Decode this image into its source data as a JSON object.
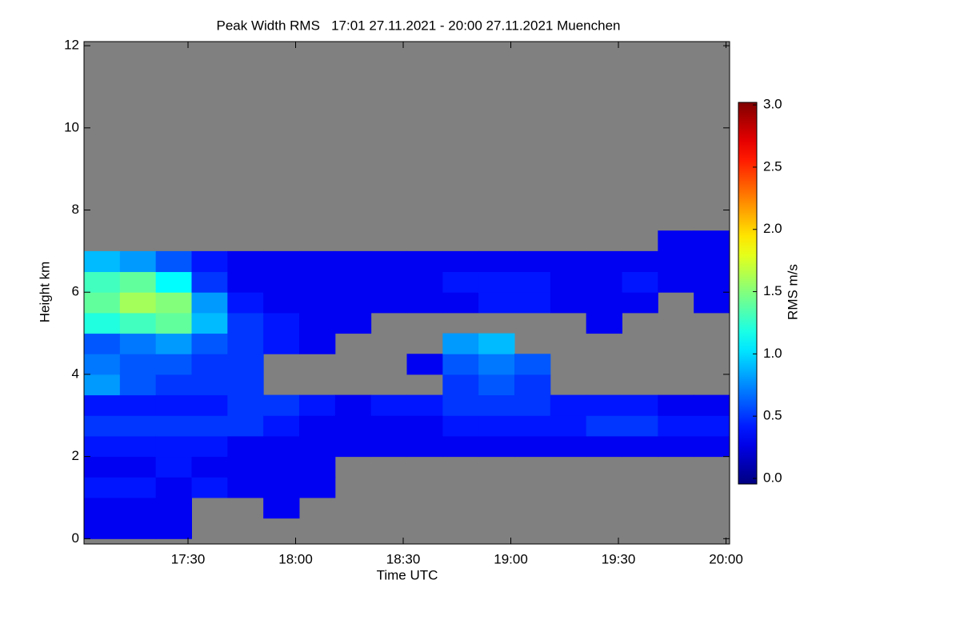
{
  "chart_data": {
    "type": "heatmap",
    "title": "Peak Width RMS   17:01 27.11.2021 - 20:00 27.11.2021 Muenchen",
    "x_label": "Time UTC",
    "y_label": "Height km",
    "colorbar_label": "RMS m/s",
    "colormap": "jet",
    "background": "#808080",
    "xlim": [
      1,
      181
    ],
    "xticks": [
      {
        "value": 30,
        "label": "17:30"
      },
      {
        "value": 60,
        "label": "18:00"
      },
      {
        "value": 90,
        "label": "18:30"
      },
      {
        "value": 120,
        "label": "19:00"
      },
      {
        "value": 150,
        "label": "19:30"
      },
      {
        "value": 180,
        "label": "20:00"
      }
    ],
    "ylim": [
      -0.13,
      12.1
    ],
    "yticks": [
      0,
      2,
      4,
      6,
      8,
      10,
      12
    ],
    "clim": [
      -0.045,
      3.02
    ],
    "cticks": [
      {
        "value": 0,
        "label": "0.0"
      },
      {
        "value": 0.5,
        "label": "0.5"
      },
      {
        "value": 1,
        "label": "1.0"
      },
      {
        "value": 1.5,
        "label": "1.5"
      },
      {
        "value": 2,
        "label": "2.0"
      },
      {
        "value": 2.5,
        "label": "2.5"
      },
      {
        "value": 3,
        "label": "3.0"
      }
    ],
    "xbins": [
      1,
      11,
      21,
      31,
      41,
      51,
      61,
      71,
      81,
      91,
      101,
      111,
      121,
      131,
      141,
      151,
      161,
      171,
      181
    ],
    "ybins": [
      0,
      0.5,
      1,
      1.5,
      2,
      2.5,
      3,
      3.5,
      4,
      4.5,
      5,
      5.5,
      6,
      6.5,
      7,
      7.5
    ],
    "values": [
      [
        0.3,
        0.3,
        0.4,
        0.3,
        0.4,
        0.5,
        0.4,
        0.8,
        0.7,
        0.6,
        1.2,
        1.4,
        1.3,
        0.9,
        null
      ],
      [
        0.3,
        0.3,
        0.4,
        0.3,
        0.4,
        0.5,
        0.4,
        0.6,
        0.6,
        0.7,
        1.3,
        1.6,
        1.4,
        0.8,
        null
      ],
      [
        0.3,
        0.3,
        0.3,
        0.4,
        0.4,
        0.5,
        0.4,
        0.5,
        0.6,
        0.8,
        1.4,
        1.5,
        1.1,
        0.6,
        null
      ],
      [
        null,
        null,
        0.4,
        0.3,
        0.4,
        0.5,
        0.4,
        0.5,
        0.5,
        0.6,
        0.9,
        0.8,
        0.5,
        0.4,
        null
      ],
      [
        null,
        null,
        0.3,
        0.3,
        0.3,
        0.5,
        0.5,
        0.5,
        0.5,
        0.5,
        0.5,
        0.4,
        0.3,
        0.3,
        null
      ],
      [
        null,
        0.3,
        0.3,
        0.3,
        0.3,
        0.4,
        0.5,
        null,
        null,
        0.4,
        0.4,
        0.3,
        0.3,
        0.3,
        null
      ],
      [
        null,
        null,
        0.3,
        0.3,
        0.3,
        0.3,
        0.4,
        null,
        null,
        0.3,
        0.3,
        0.3,
        0.3,
        0.3,
        null
      ],
      [
        null,
        null,
        null,
        null,
        0.3,
        0.3,
        0.3,
        null,
        null,
        null,
        0.3,
        0.3,
        0.3,
        0.3,
        null
      ],
      [
        null,
        null,
        null,
        null,
        0.3,
        0.3,
        0.4,
        null,
        null,
        null,
        null,
        0.3,
        0.3,
        0.3,
        null
      ],
      [
        null,
        null,
        null,
        null,
        0.3,
        0.3,
        0.4,
        null,
        0.3,
        null,
        null,
        0.3,
        0.3,
        0.3,
        null
      ],
      [
        null,
        null,
        null,
        null,
        0.3,
        0.4,
        0.5,
        0.5,
        0.6,
        0.8,
        null,
        0.3,
        0.4,
        0.3,
        null
      ],
      [
        null,
        null,
        null,
        null,
        0.3,
        0.4,
        0.5,
        0.6,
        0.7,
        0.9,
        null,
        0.4,
        0.4,
        0.3,
        null
      ],
      [
        null,
        null,
        null,
        null,
        0.3,
        0.4,
        0.5,
        0.5,
        0.6,
        null,
        null,
        0.4,
        0.4,
        0.3,
        null
      ],
      [
        null,
        null,
        null,
        null,
        0.3,
        0.4,
        0.4,
        null,
        null,
        null,
        null,
        0.3,
        0.3,
        0.3,
        null
      ],
      [
        null,
        null,
        null,
        null,
        0.3,
        0.5,
        0.4,
        null,
        null,
        null,
        0.3,
        0.3,
        0.3,
        0.3,
        null
      ],
      [
        null,
        null,
        null,
        null,
        0.3,
        0.5,
        0.4,
        null,
        null,
        null,
        null,
        0.3,
        0.4,
        0.3,
        null
      ],
      [
        null,
        null,
        null,
        null,
        0.3,
        0.4,
        0.3,
        null,
        null,
        null,
        null,
        null,
        0.3,
        0.3,
        0.3
      ],
      [
        null,
        null,
        null,
        null,
        0.3,
        0.4,
        0.3,
        null,
        null,
        null,
        null,
        0.3,
        0.3,
        0.3,
        0.3
      ]
    ]
  }
}
